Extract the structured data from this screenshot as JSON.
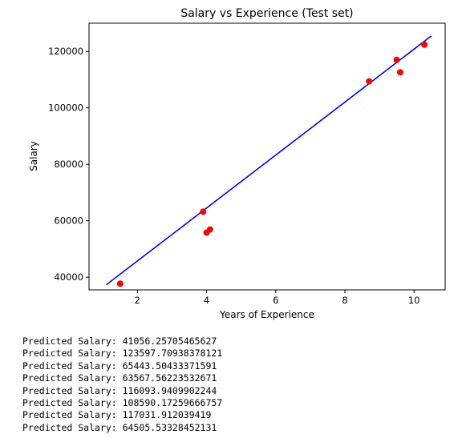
{
  "chart_data": {
    "type": "scatter",
    "title": "Salary vs Experience (Test set)",
    "xlabel": "Years of Experience",
    "ylabel": "Salary",
    "xlim": [
      0.6,
      10.9
    ],
    "ylim": [
      35500,
      130000
    ],
    "xticks": [
      2,
      4,
      6,
      8,
      10
    ],
    "yticks": [
      40000,
      60000,
      80000,
      100000,
      120000
    ],
    "grid": false,
    "series": [
      {
        "kind": "scatter",
        "color": "#ff0000",
        "points": [
          {
            "x": 1.5,
            "y": 37700
          },
          {
            "x": 3.9,
            "y": 63200
          },
          {
            "x": 4.0,
            "y": 55800
          },
          {
            "x": 4.1,
            "y": 56900
          },
          {
            "x": 8.7,
            "y": 109400
          },
          {
            "x": 9.5,
            "y": 117000
          },
          {
            "x": 9.6,
            "y": 112600
          },
          {
            "x": 10.3,
            "y": 122400
          }
        ]
      },
      {
        "kind": "line",
        "color": "#0000ff",
        "points": [
          {
            "x": 1.1,
            "y": 37300
          },
          {
            "x": 10.5,
            "y": 125500
          }
        ]
      }
    ]
  },
  "output": {
    "lines": [
      "Predicted Salary: 41056.25705465627",
      "Predicted Salary: 123597.70938378121",
      "Predicted Salary: 65443.50433371591",
      "Predicted Salary: 63567.56223532671",
      "Predicted Salary: 116093.9409902244",
      "Predicted Salary: 108590.17259666757",
      "Predicted Salary: 117031.912039419",
      "Predicted Salary: 64505.53328452131"
    ]
  }
}
